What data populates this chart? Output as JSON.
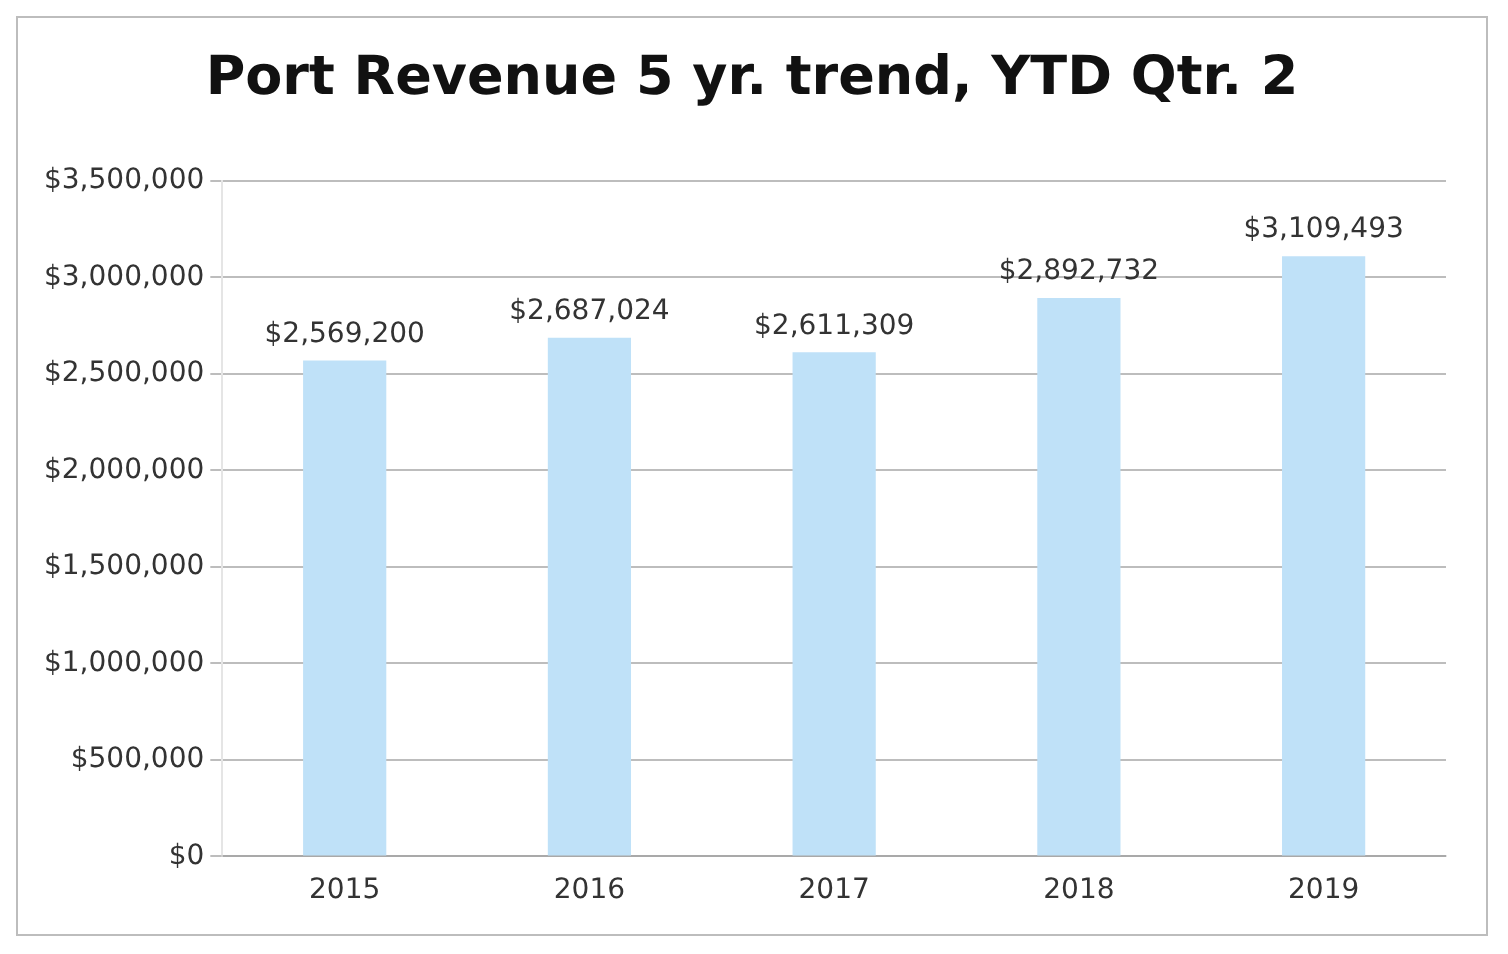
{
  "chart_data": {
    "type": "bar",
    "title": "Port Revenue 5 yr. trend, YTD Qtr. 2",
    "categories": [
      "2015",
      "2016",
      "2017",
      "2018",
      "2019"
    ],
    "values": [
      2569200,
      2687024,
      2611309,
      2892732,
      3109493
    ],
    "value_labels": [
      "$2,569,200",
      "$2,687,024",
      "$2,611,309",
      "$2,892,732",
      "$3,109,493"
    ],
    "color": "#bfe1f8",
    "ylim": [
      0,
      3500000
    ],
    "yticks": [
      {
        "value": 0,
        "label": "$0"
      },
      {
        "value": 500000,
        "label": "$500,000"
      },
      {
        "value": 1000000,
        "label": "$1,000,000"
      },
      {
        "value": 1500000,
        "label": "$1,500,000"
      },
      {
        "value": 2000000,
        "label": "$2,000,000"
      },
      {
        "value": 2500000,
        "label": "$2,500,000"
      },
      {
        "value": 3000000,
        "label": "$3,000,000"
      },
      {
        "value": 3500000,
        "label": "$3,500,000"
      }
    ],
    "grid": "y",
    "legend": false
  }
}
